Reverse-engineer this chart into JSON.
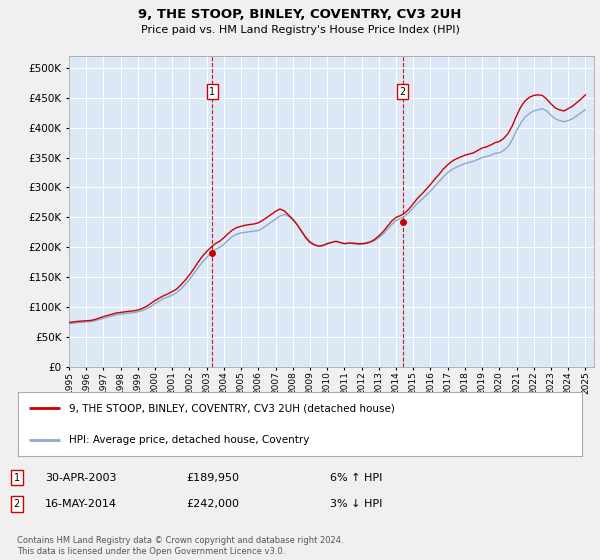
{
  "title": "9, THE STOOP, BINLEY, COVENTRY, CV3 2UH",
  "subtitle": "Price paid vs. HM Land Registry's House Price Index (HPI)",
  "yticks": [
    0,
    50000,
    100000,
    150000,
    200000,
    250000,
    300000,
    350000,
    400000,
    450000,
    500000
  ],
  "ylim": [
    0,
    520000
  ],
  "xlim_start": 1995.0,
  "xlim_end": 2025.5,
  "fig_bg_color": "#f0f0f0",
  "plot_bg_color": "#dce8f5",
  "grid_color": "#ffffff",
  "line1_color": "#cc0000",
  "line2_color": "#88aacc",
  "sale1_date": "30-APR-2003",
  "sale1_price": 189950,
  "sale1_label": "6% ↑ HPI",
  "sale1_x": 2003.33,
  "sale2_date": "16-MAY-2014",
  "sale2_price": 242000,
  "sale2_label": "3% ↓ HPI",
  "sale2_x": 2014.38,
  "legend_line1": "9, THE STOOP, BINLEY, COVENTRY, CV3 2UH (detached house)",
  "legend_line2": "HPI: Average price, detached house, Coventry",
  "footer": "Contains HM Land Registry data © Crown copyright and database right 2024.\nThis data is licensed under the Open Government Licence v3.0.",
  "hpi_years": [
    1995,
    1995.25,
    1995.5,
    1995.75,
    1996,
    1996.25,
    1996.5,
    1996.75,
    1997,
    1997.25,
    1997.5,
    1997.75,
    1998,
    1998.25,
    1998.5,
    1998.75,
    1999,
    1999.25,
    1999.5,
    1999.75,
    2000,
    2000.25,
    2000.5,
    2000.75,
    2001,
    2001.25,
    2001.5,
    2001.75,
    2002,
    2002.25,
    2002.5,
    2002.75,
    2003,
    2003.25,
    2003.5,
    2003.75,
    2004,
    2004.25,
    2004.5,
    2004.75,
    2005,
    2005.25,
    2005.5,
    2005.75,
    2006,
    2006.25,
    2006.5,
    2006.75,
    2007,
    2007.25,
    2007.5,
    2007.75,
    2008,
    2008.25,
    2008.5,
    2008.75,
    2009,
    2009.25,
    2009.5,
    2009.75,
    2010,
    2010.25,
    2010.5,
    2010.75,
    2011,
    2011.25,
    2011.5,
    2011.75,
    2012,
    2012.25,
    2012.5,
    2012.75,
    2013,
    2013.25,
    2013.5,
    2013.75,
    2014,
    2014.25,
    2014.5,
    2014.75,
    2015,
    2015.25,
    2015.5,
    2015.75,
    2016,
    2016.25,
    2016.5,
    2016.75,
    2017,
    2017.25,
    2017.5,
    2017.75,
    2018,
    2018.25,
    2018.5,
    2018.75,
    2019,
    2019.25,
    2019.5,
    2019.75,
    2020,
    2020.25,
    2020.5,
    2020.75,
    2021,
    2021.25,
    2021.5,
    2021.75,
    2022,
    2022.25,
    2022.5,
    2022.75,
    2023,
    2023.25,
    2023.5,
    2023.75,
    2024,
    2024.25,
    2024.5,
    2024.75,
    2025
  ],
  "hpi_values": [
    72000,
    73000,
    74000,
    74500,
    75000,
    75500,
    77000,
    79000,
    81000,
    83000,
    85000,
    87000,
    88000,
    89000,
    90000,
    90500,
    92000,
    94000,
    97000,
    101000,
    106000,
    110000,
    114000,
    117000,
    120000,
    124000,
    130000,
    138000,
    146000,
    156000,
    166000,
    175000,
    183000,
    190000,
    196000,
    200000,
    205000,
    212000,
    218000,
    222000,
    224000,
    225000,
    226000,
    227000,
    228000,
    232000,
    237000,
    242000,
    247000,
    252000,
    255000,
    252000,
    246000,
    238000,
    228000,
    218000,
    210000,
    205000,
    202000,
    203000,
    206000,
    208000,
    210000,
    208000,
    206000,
    207000,
    206000,
    205000,
    205000,
    206000,
    208000,
    211000,
    216000,
    222000,
    230000,
    238000,
    245000,
    248000,
    252000,
    258000,
    266000,
    274000,
    280000,
    287000,
    294000,
    302000,
    310000,
    318000,
    325000,
    330000,
    334000,
    337000,
    340000,
    342000,
    344000,
    347000,
    350000,
    352000,
    354000,
    357000,
    358000,
    362000,
    368000,
    380000,
    395000,
    408000,
    418000,
    424000,
    428000,
    430000,
    432000,
    428000,
    421000,
    415000,
    412000,
    410000,
    412000,
    415000,
    420000,
    425000,
    430000
  ],
  "price_years": [
    1995,
    1995.25,
    1995.5,
    1995.75,
    1996,
    1996.25,
    1996.5,
    1996.75,
    1997,
    1997.25,
    1997.5,
    1997.75,
    1998,
    1998.25,
    1998.5,
    1998.75,
    1999,
    1999.25,
    1999.5,
    1999.75,
    2000,
    2000.25,
    2000.5,
    2000.75,
    2001,
    2001.25,
    2001.5,
    2001.75,
    2002,
    2002.25,
    2002.5,
    2002.75,
    2003,
    2003.25,
    2003.5,
    2003.75,
    2004,
    2004.25,
    2004.5,
    2004.75,
    2005,
    2005.25,
    2005.5,
    2005.75,
    2006,
    2006.25,
    2006.5,
    2006.75,
    2007,
    2007.25,
    2007.5,
    2007.75,
    2008,
    2008.25,
    2008.5,
    2008.75,
    2009,
    2009.25,
    2009.5,
    2009.75,
    2010,
    2010.25,
    2010.5,
    2010.75,
    2011,
    2011.25,
    2011.5,
    2011.75,
    2012,
    2012.25,
    2012.5,
    2012.75,
    2013,
    2013.25,
    2013.5,
    2013.75,
    2014,
    2014.25,
    2014.5,
    2014.75,
    2015,
    2015.25,
    2015.5,
    2015.75,
    2016,
    2016.25,
    2016.5,
    2016.75,
    2017,
    2017.25,
    2017.5,
    2017.75,
    2018,
    2018.25,
    2018.5,
    2018.75,
    2019,
    2019.25,
    2019.5,
    2019.75,
    2020,
    2020.25,
    2020.5,
    2020.75,
    2021,
    2021.25,
    2021.5,
    2021.75,
    2022,
    2022.25,
    2022.5,
    2022.75,
    2023,
    2023.25,
    2023.5,
    2023.75,
    2024,
    2024.25,
    2024.5,
    2024.75,
    2025
  ],
  "price_values": [
    74000,
    75000,
    76000,
    76500,
    77000,
    77500,
    79000,
    81500,
    84000,
    86000,
    88000,
    90000,
    91000,
    92000,
    93000,
    93500,
    95000,
    97500,
    101000,
    106000,
    111000,
    115000,
    119000,
    122000,
    126000,
    130000,
    137000,
    145000,
    154000,
    164000,
    175000,
    185000,
    193000,
    200000,
    206000,
    210000,
    216000,
    223000,
    229000,
    233000,
    235000,
    237000,
    238000,
    239000,
    241000,
    245000,
    250000,
    255000,
    260000,
    264000,
    261000,
    254000,
    247000,
    238000,
    227000,
    216000,
    208000,
    204000,
    202000,
    203000,
    206000,
    208000,
    210000,
    208000,
    206000,
    207000,
    207000,
    206000,
    206000,
    207000,
    209000,
    213000,
    219000,
    226000,
    235000,
    244000,
    250000,
    253000,
    257000,
    264000,
    273000,
    282000,
    289000,
    297000,
    305000,
    314000,
    322000,
    331000,
    338000,
    344000,
    348000,
    351000,
    354000,
    356000,
    358000,
    362000,
    366000,
    368000,
    371000,
    375000,
    377000,
    382000,
    390000,
    403000,
    420000,
    435000,
    445000,
    451000,
    454000,
    455000,
    454000,
    448000,
    440000,
    433000,
    430000,
    428000,
    432000,
    436000,
    442000,
    448000,
    455000
  ]
}
